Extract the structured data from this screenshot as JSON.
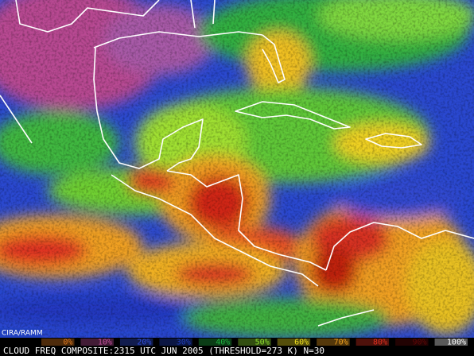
{
  "map": {
    "credit": "CIRA/RAMM",
    "caption": "CLOUD FREQ COMPOSITE:2315 UTC JUN 2005 (THRESHOLD=273 K) N=30",
    "colorbar": [
      {
        "label": "0%",
        "color": "#e07a20"
      },
      {
        "label": "10%",
        "color": "#c0509a"
      },
      {
        "label": "20%",
        "color": "#3050e0"
      },
      {
        "label": "30%",
        "color": "#2040c0"
      },
      {
        "label": "40%",
        "color": "#20b040"
      },
      {
        "label": "50%",
        "color": "#90e030"
      },
      {
        "label": "60%",
        "color": "#f0e020"
      },
      {
        "label": "70%",
        "color": "#f0a020"
      },
      {
        "label": "80%",
        "color": "#e03020"
      },
      {
        "label": "90%",
        "color": "#600808"
      },
      {
        "label": "100%",
        "color": "#ffffff"
      }
    ]
  }
}
